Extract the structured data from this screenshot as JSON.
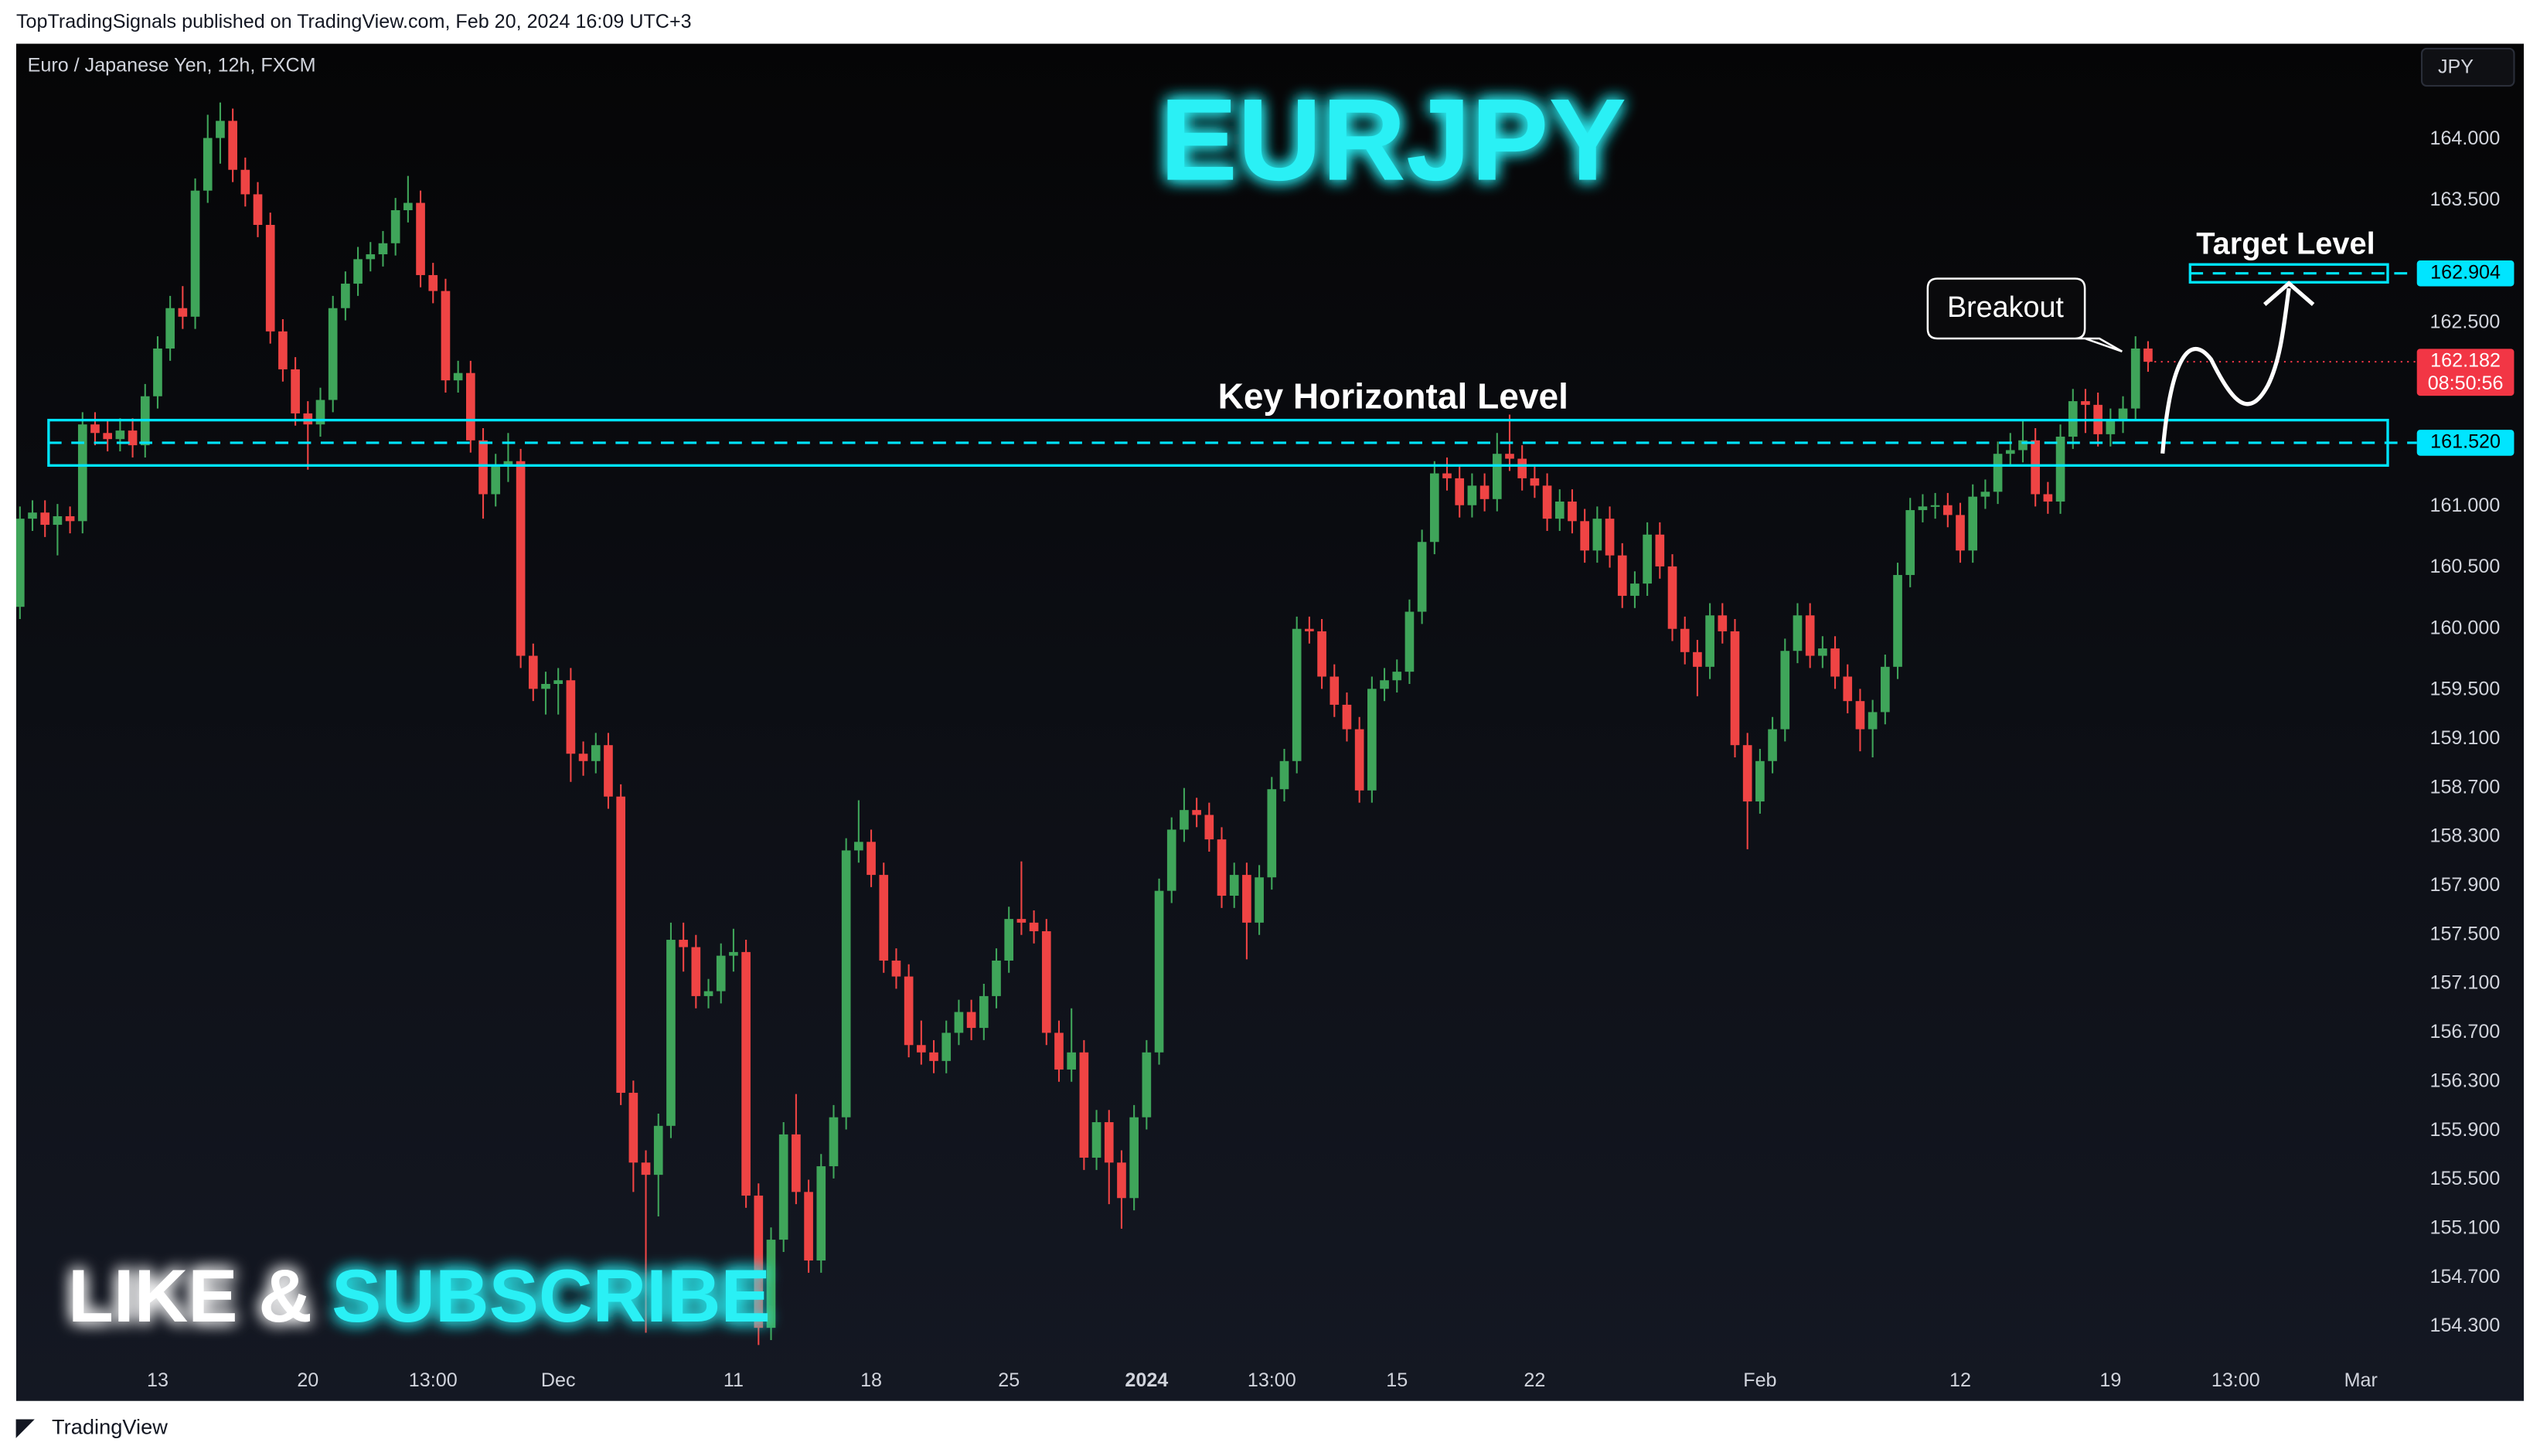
{
  "header": "TopTradingSignals published on TradingView.com, Feb 20, 2024 16:09 UTC+3",
  "footer": "TradingView",
  "chart_data": {
    "type": "candlestick",
    "title": "EURJPY",
    "symbol_info": "Euro / Japanese Yen, 12h, FXCM",
    "currency": "JPY",
    "up_color": "#3fa55a",
    "down_color": "#ef4444",
    "grid": false,
    "xlim": [
      -0.3,
      190.7
    ],
    "ylim": [
      154.05,
      164.78
    ],
    "yticks": [
      {
        "value": 164,
        "label": "164.000"
      },
      {
        "value": 163.5,
        "label": "163.500"
      },
      {
        "value": 162.5,
        "label": "162.500"
      },
      {
        "value": 161,
        "label": "161.000"
      },
      {
        "value": 160.5,
        "label": "160.500"
      },
      {
        "value": 160,
        "label": "160.000"
      },
      {
        "value": 159.5,
        "label": "159.500"
      },
      {
        "value": 159.1,
        "label": "159.100"
      },
      {
        "value": 158.7,
        "label": "158.700"
      },
      {
        "value": 158.3,
        "label": "158.300"
      },
      {
        "value": 157.9,
        "label": "157.900"
      },
      {
        "value": 157.5,
        "label": "157.500"
      },
      {
        "value": 157.1,
        "label": "157.100"
      },
      {
        "value": 156.7,
        "label": "156.700"
      },
      {
        "value": 156.3,
        "label": "156.300"
      },
      {
        "value": 155.9,
        "label": "155.900"
      },
      {
        "value": 155.5,
        "label": "155.500"
      },
      {
        "value": 155.1,
        "label": "155.100"
      },
      {
        "value": 154.7,
        "label": "154.700"
      },
      {
        "value": 154.3,
        "label": "154.300"
      }
    ],
    "xticks": [
      {
        "value": 11,
        "label": "13"
      },
      {
        "value": 23,
        "label": "20"
      },
      {
        "value": 33,
        "label": "13:00"
      },
      {
        "value": 43,
        "label": "Dec"
      },
      {
        "value": 57,
        "label": "11"
      },
      {
        "value": 68,
        "label": "18"
      },
      {
        "value": 79,
        "label": "25"
      },
      {
        "value": 90,
        "label": "2024"
      },
      {
        "value": 100,
        "label": "13:00"
      },
      {
        "value": 110,
        "label": "15"
      },
      {
        "value": 121,
        "label": "22"
      },
      {
        "value": 139,
        "label": "Feb"
      },
      {
        "value": 155,
        "label": "12"
      },
      {
        "value": 167,
        "label": "19"
      },
      {
        "value": 177,
        "label": "13:00"
      },
      {
        "value": 187,
        "label": "Mar"
      }
    ],
    "candles": [
      [
        160.18,
        161.0,
        160.08,
        160.9
      ],
      [
        160.9,
        161.05,
        160.8,
        160.95
      ],
      [
        160.95,
        161.05,
        160.75,
        160.85
      ],
      [
        160.85,
        161.02,
        160.6,
        160.92
      ],
      [
        160.92,
        161.0,
        160.78,
        160.88
      ],
      [
        160.88,
        161.77,
        160.78,
        161.67
      ],
      [
        161.67,
        161.77,
        161.5,
        161.6
      ],
      [
        161.6,
        161.7,
        161.45,
        161.55
      ],
      [
        161.55,
        161.72,
        161.45,
        161.62
      ],
      [
        161.62,
        161.72,
        161.4,
        161.5
      ],
      [
        161.5,
        162.0,
        161.4,
        161.9
      ],
      [
        161.9,
        162.39,
        161.8,
        162.29
      ],
      [
        162.29,
        162.72,
        162.19,
        162.62
      ],
      [
        162.62,
        162.8,
        162.45,
        162.55
      ],
      [
        162.55,
        163.68,
        162.45,
        163.58
      ],
      [
        163.58,
        164.2,
        163.48,
        164.01
      ],
      [
        164.01,
        164.3,
        163.8,
        164.15
      ],
      [
        164.15,
        164.25,
        163.65,
        163.75
      ],
      [
        163.75,
        163.85,
        163.45,
        163.55
      ],
      [
        163.55,
        163.65,
        163.2,
        163.3
      ],
      [
        163.3,
        163.4,
        162.33,
        162.43
      ],
      [
        162.43,
        162.53,
        162.02,
        162.12
      ],
      [
        162.12,
        162.22,
        161.66,
        161.76
      ],
      [
        161.76,
        161.86,
        161.3,
        161.67
      ],
      [
        161.67,
        161.97,
        161.57,
        161.87
      ],
      [
        161.87,
        162.72,
        161.77,
        162.62
      ],
      [
        162.62,
        162.92,
        162.52,
        162.82
      ],
      [
        162.82,
        163.12,
        162.72,
        163.02
      ],
      [
        163.02,
        163.16,
        162.92,
        163.06
      ],
      [
        163.06,
        163.25,
        162.96,
        163.15
      ],
      [
        163.15,
        163.52,
        163.05,
        163.42
      ],
      [
        163.42,
        163.7,
        163.32,
        163.48
      ],
      [
        163.48,
        163.58,
        162.79,
        162.89
      ],
      [
        162.89,
        162.99,
        162.66,
        162.76
      ],
      [
        162.76,
        162.86,
        161.93,
        162.03
      ],
      [
        162.03,
        162.19,
        161.93,
        162.09
      ],
      [
        162.09,
        162.19,
        161.44,
        161.54
      ],
      [
        161.54,
        161.64,
        160.9,
        161.1
      ],
      [
        161.1,
        161.43,
        161.0,
        161.33
      ],
      [
        161.33,
        161.6,
        161.2,
        161.37
      ],
      [
        161.37,
        161.47,
        159.68,
        159.78
      ],
      [
        159.78,
        159.88,
        159.41,
        159.51
      ],
      [
        159.51,
        159.65,
        159.3,
        159.55
      ],
      [
        159.55,
        159.68,
        159.3,
        159.58
      ],
      [
        159.58,
        159.68,
        158.75,
        158.98
      ],
      [
        158.98,
        159.08,
        158.8,
        158.92
      ],
      [
        158.92,
        159.15,
        158.82,
        159.05
      ],
      [
        159.05,
        159.15,
        158.53,
        158.63
      ],
      [
        158.63,
        158.73,
        156.11,
        156.21
      ],
      [
        156.21,
        156.31,
        155.4,
        155.64
      ],
      [
        155.64,
        155.74,
        154.25,
        155.54
      ],
      [
        155.54,
        156.04,
        155.2,
        155.94
      ],
      [
        155.94,
        157.6,
        155.84,
        157.46
      ],
      [
        157.46,
        157.6,
        157.2,
        157.4
      ],
      [
        157.4,
        157.5,
        156.9,
        157.0
      ],
      [
        157.0,
        157.14,
        156.9,
        157.04
      ],
      [
        157.04,
        157.43,
        156.94,
        157.33
      ],
      [
        157.33,
        157.55,
        157.2,
        157.36
      ],
      [
        157.36,
        157.46,
        155.27,
        155.37
      ],
      [
        155.37,
        155.47,
        154.15,
        154.29
      ],
      [
        154.29,
        155.11,
        154.19,
        155.01
      ],
      [
        155.01,
        155.97,
        154.91,
        155.87
      ],
      [
        155.87,
        156.2,
        155.3,
        155.4
      ],
      [
        155.4,
        155.5,
        154.74,
        154.84
      ],
      [
        154.84,
        155.71,
        154.74,
        155.61
      ],
      [
        155.61,
        156.11,
        155.51,
        156.01
      ],
      [
        156.01,
        158.29,
        155.91,
        158.19
      ],
      [
        158.19,
        158.6,
        158.09,
        158.26
      ],
      [
        158.26,
        158.36,
        157.89,
        157.99
      ],
      [
        157.99,
        158.09,
        157.19,
        157.29
      ],
      [
        157.29,
        157.39,
        157.06,
        157.16
      ],
      [
        157.16,
        157.26,
        156.5,
        156.6
      ],
      [
        156.6,
        156.8,
        156.44,
        156.54
      ],
      [
        156.54,
        156.64,
        156.37,
        156.47
      ],
      [
        156.47,
        156.8,
        156.37,
        156.7
      ],
      [
        156.7,
        156.97,
        156.6,
        156.87
      ],
      [
        156.87,
        156.97,
        156.64,
        156.74
      ],
      [
        156.74,
        157.1,
        156.64,
        157.0
      ],
      [
        157.0,
        157.39,
        156.9,
        157.29
      ],
      [
        157.29,
        157.73,
        157.19,
        157.63
      ],
      [
        157.63,
        158.1,
        157.5,
        157.6
      ],
      [
        157.6,
        157.7,
        157.43,
        157.53
      ],
      [
        157.53,
        157.63,
        156.6,
        156.7
      ],
      [
        156.7,
        156.8,
        156.3,
        156.4
      ],
      [
        156.4,
        156.9,
        156.3,
        156.54
      ],
      [
        156.54,
        156.64,
        155.58,
        155.68
      ],
      [
        155.68,
        156.07,
        155.58,
        155.97
      ],
      [
        155.97,
        156.07,
        155.3,
        155.64
      ],
      [
        155.64,
        155.74,
        155.1,
        155.35
      ],
      [
        155.35,
        156.11,
        155.25,
        156.01
      ],
      [
        156.01,
        156.64,
        155.91,
        156.54
      ],
      [
        156.54,
        157.96,
        156.44,
        157.86
      ],
      [
        157.86,
        158.46,
        157.76,
        158.36
      ],
      [
        158.36,
        158.7,
        158.26,
        158.52
      ],
      [
        158.52,
        158.62,
        158.38,
        158.48
      ],
      [
        158.48,
        158.58,
        158.18,
        158.28
      ],
      [
        158.28,
        158.38,
        157.72,
        157.82
      ],
      [
        157.82,
        158.09,
        157.72,
        157.99
      ],
      [
        157.99,
        158.09,
        157.3,
        157.6
      ],
      [
        157.6,
        158.07,
        157.5,
        157.97
      ],
      [
        157.97,
        158.79,
        157.87,
        158.69
      ],
      [
        158.69,
        159.02,
        158.59,
        158.92
      ],
      [
        158.92,
        160.1,
        158.82,
        160.0
      ],
      [
        160.0,
        160.1,
        159.88,
        159.98
      ],
      [
        159.98,
        160.08,
        159.51,
        159.61
      ],
      [
        159.61,
        159.71,
        159.28,
        159.38
      ],
      [
        159.38,
        159.48,
        159.08,
        159.18
      ],
      [
        159.18,
        159.28,
        158.58,
        158.68
      ],
      [
        158.68,
        159.61,
        158.58,
        159.51
      ],
      [
        159.51,
        159.68,
        159.41,
        159.58
      ],
      [
        159.58,
        159.75,
        159.48,
        159.65
      ],
      [
        159.65,
        160.24,
        159.55,
        160.14
      ],
      [
        160.14,
        160.81,
        160.04,
        160.71
      ],
      [
        160.71,
        161.37,
        160.61,
        161.27
      ],
      [
        161.27,
        161.4,
        161.13,
        161.23
      ],
      [
        161.23,
        161.33,
        160.91,
        161.01
      ],
      [
        161.01,
        161.27,
        160.91,
        161.17
      ],
      [
        161.17,
        161.27,
        160.96,
        161.06
      ],
      [
        161.06,
        161.6,
        160.96,
        161.43
      ],
      [
        161.43,
        161.75,
        161.29,
        161.39
      ],
      [
        161.39,
        161.5,
        161.13,
        161.23
      ],
      [
        161.23,
        161.33,
        161.07,
        161.17
      ],
      [
        161.17,
        161.27,
        160.8,
        160.9
      ],
      [
        160.9,
        161.14,
        160.8,
        161.04
      ],
      [
        161.04,
        161.14,
        160.78,
        160.88
      ],
      [
        160.88,
        160.98,
        160.54,
        160.64
      ],
      [
        160.64,
        161.0,
        160.54,
        160.9
      ],
      [
        160.9,
        161.0,
        160.5,
        160.6
      ],
      [
        160.6,
        160.7,
        160.17,
        160.27
      ],
      [
        160.27,
        160.47,
        160.17,
        160.37
      ],
      [
        160.37,
        160.87,
        160.27,
        160.77
      ],
      [
        160.77,
        160.87,
        160.41,
        160.51
      ],
      [
        160.51,
        160.61,
        159.9,
        160.0
      ],
      [
        160.0,
        160.1,
        159.71,
        159.81
      ],
      [
        159.81,
        159.91,
        159.45,
        159.69
      ],
      [
        159.69,
        160.21,
        159.59,
        160.11
      ],
      [
        160.11,
        160.21,
        159.88,
        159.98
      ],
      [
        159.98,
        160.08,
        158.95,
        159.05
      ],
      [
        159.05,
        159.15,
        158.2,
        158.59
      ],
      [
        158.59,
        159.02,
        158.49,
        158.92
      ],
      [
        158.92,
        159.28,
        158.82,
        159.18
      ],
      [
        159.18,
        159.92,
        159.08,
        159.82
      ],
      [
        159.82,
        160.21,
        159.72,
        160.11
      ],
      [
        160.11,
        160.21,
        159.68,
        159.78
      ],
      [
        159.78,
        159.94,
        159.68,
        159.84
      ],
      [
        159.84,
        159.94,
        159.51,
        159.61
      ],
      [
        159.61,
        159.71,
        159.31,
        159.41
      ],
      [
        159.41,
        159.51,
        159.0,
        159.18
      ],
      [
        159.18,
        159.42,
        158.95,
        159.32
      ],
      [
        159.32,
        159.79,
        159.22,
        159.69
      ],
      [
        159.69,
        160.54,
        159.59,
        160.44
      ],
      [
        160.44,
        161.07,
        160.34,
        160.97
      ],
      [
        160.97,
        161.1,
        160.87,
        161.0
      ],
      [
        161.0,
        161.11,
        160.9,
        161.01
      ],
      [
        161.01,
        161.11,
        160.83,
        160.93
      ],
      [
        160.93,
        161.03,
        160.54,
        160.64
      ],
      [
        160.64,
        161.18,
        160.54,
        161.08
      ],
      [
        161.08,
        161.22,
        160.98,
        161.12
      ],
      [
        161.12,
        161.53,
        161.02,
        161.43
      ],
      [
        161.43,
        161.6,
        161.33,
        161.46
      ],
      [
        161.46,
        161.7,
        161.36,
        161.54
      ],
      [
        161.54,
        161.64,
        161.0,
        161.1
      ],
      [
        161.1,
        161.2,
        160.94,
        161.04
      ],
      [
        161.04,
        161.67,
        160.94,
        161.57
      ],
      [
        161.57,
        161.96,
        161.47,
        161.86
      ],
      [
        161.86,
        161.96,
        161.6,
        161.83
      ],
      [
        161.83,
        161.93,
        161.49,
        161.59
      ],
      [
        161.59,
        161.8,
        161.49,
        161.7
      ],
      [
        161.7,
        161.9,
        161.6,
        161.8
      ],
      [
        161.8,
        162.39,
        161.7,
        162.29
      ],
      [
        162.29,
        162.35,
        162.1,
        162.182
      ]
    ],
    "levels": [
      {
        "name": "Key Horizontal Level",
        "value": 161.52,
        "label": "161.520",
        "color": "#00e5ff"
      },
      {
        "name": "Target Level",
        "value": 162.904,
        "label": "162.904",
        "color": "#00e5ff"
      }
    ],
    "last_price": {
      "value": 162.182,
      "label": "162.182",
      "countdown": "08:50:56",
      "color": "#f23645"
    },
    "annotations": {
      "breakout": "Breakout",
      "like": "LIKE &",
      "subscribe": "SUBSCRIBE"
    }
  }
}
